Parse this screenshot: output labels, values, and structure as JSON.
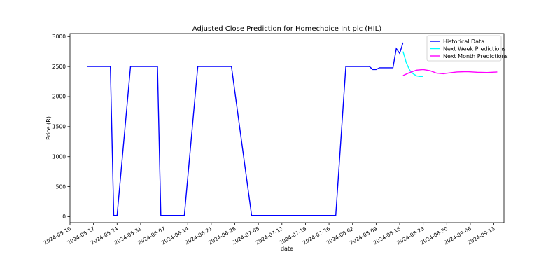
{
  "chart_data": {
    "type": "line",
    "title": "Adjusted Close Prediction for Homechoice Int plc (HIL)",
    "xlabel": "date",
    "ylabel": "Price (R)",
    "xlim": [
      "2024-05-10",
      "2024-09-16"
    ],
    "ylim": [
      -100,
      3050
    ],
    "x_ticks": [
      "2024-05-10",
      "2024-05-17",
      "2024-05-24",
      "2024-05-31",
      "2024-06-07",
      "2024-06-14",
      "2024-06-21",
      "2024-06-28",
      "2024-07-05",
      "2024-07-12",
      "2024-07-19",
      "2024-07-26",
      "2024-08-02",
      "2024-08-09",
      "2024-08-16",
      "2024-08-23",
      "2024-08-30",
      "2024-09-06",
      "2024-09-13"
    ],
    "y_ticks": [
      0,
      500,
      1000,
      1500,
      2000,
      2500,
      3000
    ],
    "legend_position": "top-right",
    "grid": false,
    "series": [
      {
        "name": "Historical Data",
        "color": "#0000ff",
        "points": [
          [
            "2024-05-15",
            2500
          ],
          [
            "2024-05-22",
            2500
          ],
          [
            "2024-05-23",
            20
          ],
          [
            "2024-05-24",
            20
          ],
          [
            "2024-05-28",
            2500
          ],
          [
            "2024-06-05",
            2500
          ],
          [
            "2024-06-06",
            20
          ],
          [
            "2024-06-13",
            20
          ],
          [
            "2024-06-17",
            2500
          ],
          [
            "2024-06-27",
            2500
          ],
          [
            "2024-07-03",
            20
          ],
          [
            "2024-07-28",
            20
          ],
          [
            "2024-07-31",
            2500
          ],
          [
            "2024-08-07",
            2500
          ],
          [
            "2024-08-08",
            2450
          ],
          [
            "2024-08-09",
            2450
          ],
          [
            "2024-08-10",
            2480
          ],
          [
            "2024-08-14",
            2480
          ],
          [
            "2024-08-15",
            2800
          ],
          [
            "2024-08-16",
            2720
          ],
          [
            "2024-08-17",
            2900
          ]
        ]
      },
      {
        "name": "Next Week Predictions",
        "color": "#00ffff",
        "points": [
          [
            "2024-08-17",
            2750
          ],
          [
            "2024-08-18",
            2560
          ],
          [
            "2024-08-19",
            2440
          ],
          [
            "2024-08-20",
            2380
          ],
          [
            "2024-08-21",
            2345
          ],
          [
            "2024-08-22",
            2335
          ],
          [
            "2024-08-23",
            2335
          ]
        ]
      },
      {
        "name": "Next Month Predictions",
        "color": "#ff00ff",
        "points": [
          [
            "2024-08-17",
            2350
          ],
          [
            "2024-08-19",
            2400
          ],
          [
            "2024-08-21",
            2440
          ],
          [
            "2024-08-23",
            2450
          ],
          [
            "2024-08-25",
            2430
          ],
          [
            "2024-08-27",
            2390
          ],
          [
            "2024-08-29",
            2380
          ],
          [
            "2024-08-31",
            2395
          ],
          [
            "2024-09-02",
            2410
          ],
          [
            "2024-09-05",
            2415
          ],
          [
            "2024-09-08",
            2405
          ],
          [
            "2024-09-11",
            2400
          ],
          [
            "2024-09-14",
            2410
          ]
        ]
      }
    ]
  }
}
